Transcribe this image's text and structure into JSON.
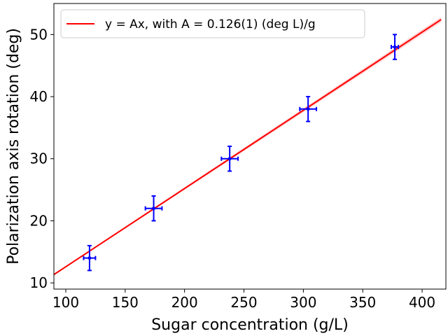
{
  "chart_data": {
    "type": "scatter",
    "xlabel": "Sugar concentration (g/L)",
    "ylabel": "Polarization axis rotation (deg)",
    "xlim": [
      90,
      420
    ],
    "ylim": [
      9,
      55
    ],
    "xticks": [
      100,
      150,
      200,
      250,
      300,
      350,
      400
    ],
    "yticks": [
      10,
      20,
      30,
      40,
      50
    ],
    "grid": false,
    "legend_position": "top-left",
    "points": [
      {
        "x": 120,
        "y": 14,
        "xerr": 5,
        "yerr": 2
      },
      {
        "x": 174,
        "y": 22,
        "xerr": 7,
        "yerr": 2
      },
      {
        "x": 238,
        "y": 30,
        "xerr": 7,
        "yerr": 2
      },
      {
        "x": 304,
        "y": 38,
        "xerr": 7,
        "yerr": 2
      },
      {
        "x": 377,
        "y": 48,
        "xerr": 3,
        "yerr": 2
      }
    ],
    "fit": {
      "label": "y = Ax,    with A = 0.126(1) (deg L)/g",
      "slope": 0.126,
      "x_range": [
        90,
        416
      ]
    },
    "colors": {
      "points": "#0000ff",
      "fit": "#ff0000",
      "fit_band": "#ffb3b3"
    }
  }
}
